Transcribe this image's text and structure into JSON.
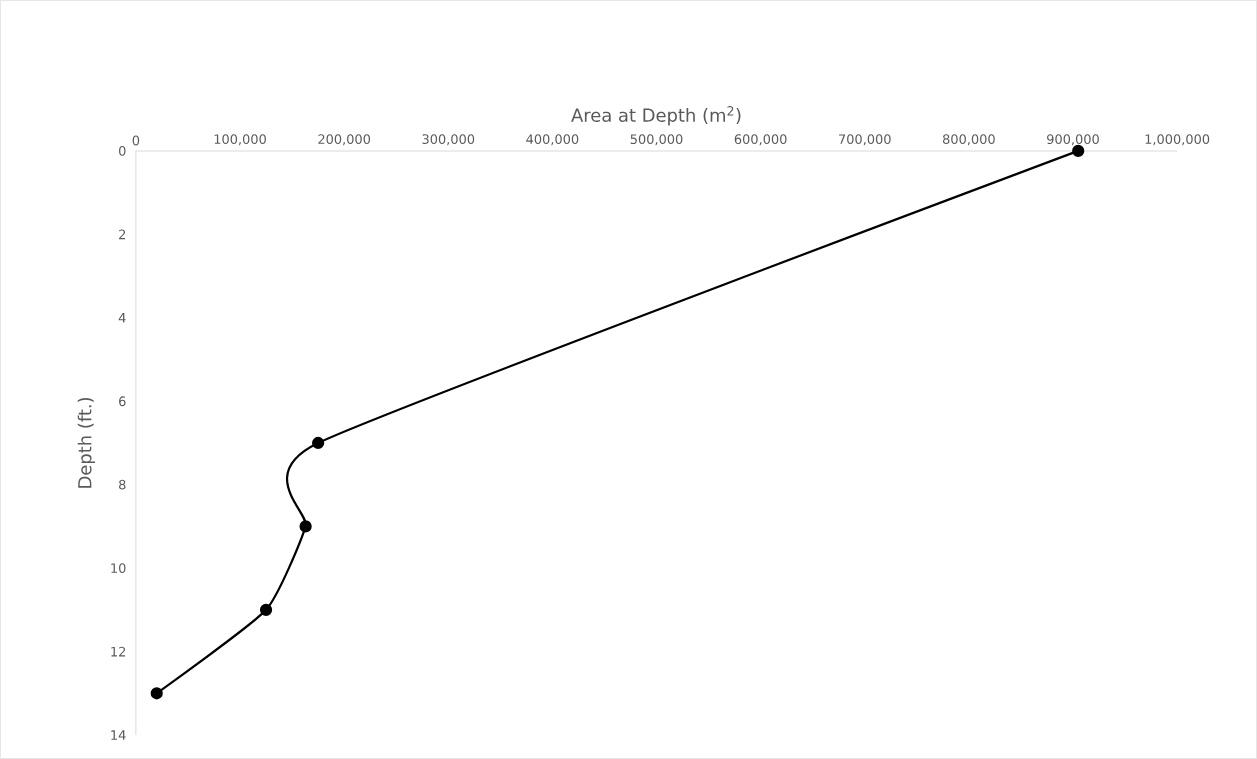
{
  "chart_data": {
    "type": "line",
    "xlabel": "Area at Depth (m$^{2}$)",
    "ylabel": "Depth (ft.)",
    "x": [
      905000,
      175000,
      163000,
      125000,
      20000
    ],
    "values": [
      0,
      7,
      9,
      11,
      13
    ],
    "color": "#000000",
    "marker": "circle",
    "line_style": "solid",
    "xlim": [
      0,
      1000000
    ],
    "xticks": [
      0,
      {
        "value": 100000,
        "label": "100,000"
      },
      {
        "value": 200000,
        "label": "200,000"
      },
      {
        "value": 300000,
        "label": "300,000"
      },
      {
        "value": 400000,
        "label": "400,000"
      },
      {
        "value": 500000,
        "label": "500,000"
      },
      {
        "value": 600000,
        "label": "600,000"
      },
      {
        "value": 700000,
        "label": "700,000"
      },
      {
        "value": 800000,
        "label": "800,000"
      },
      {
        "value": 900000,
        "label": "900,000"
      },
      {
        "value": 1000000,
        "label": "1,000,000"
      }
    ],
    "ylim": [
      14,
      0
    ],
    "yticks": [
      0,
      2,
      4,
      6,
      8,
      10,
      12,
      14
    ],
    "grid": false
  }
}
